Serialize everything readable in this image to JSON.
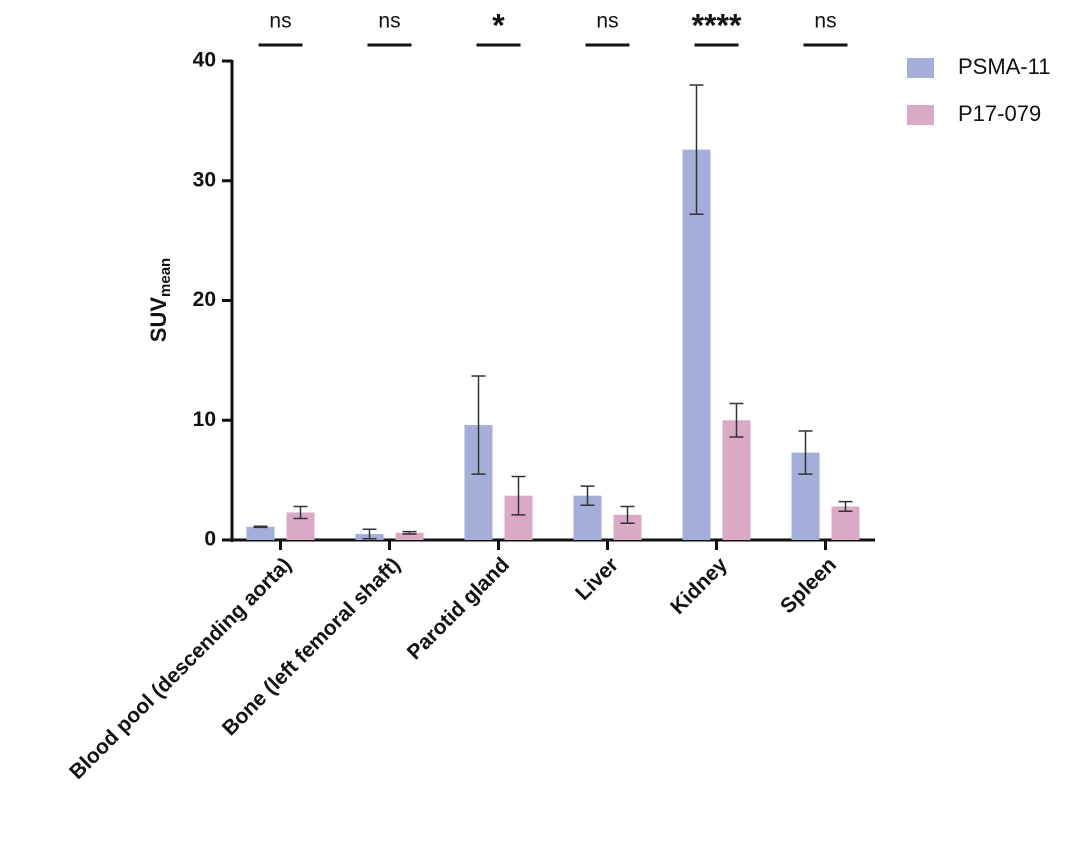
{
  "chart_data": {
    "type": "bar",
    "y_label": "SUV",
    "y_label_subscript": "mean",
    "categories": [
      "Blood pool (descending aorta)",
      "Bone (left femoral shaft)",
      "Parotid gland",
      "Liver",
      "Kidney",
      "Spleen"
    ],
    "series": [
      {
        "name": "PSMA-11",
        "color": "#a4aed9",
        "values": [
          1.1,
          0.5,
          9.6,
          3.7,
          32.6,
          7.3
        ],
        "errors": [
          0.05,
          0.4,
          4.1,
          0.8,
          5.4,
          1.8
        ]
      },
      {
        "name": "P17-079",
        "color": "#d9a9c5",
        "values": [
          2.3,
          0.6,
          3.7,
          2.1,
          10.0,
          2.8
        ],
        "errors": [
          0.5,
          0.1,
          1.6,
          0.7,
          1.4,
          0.4
        ]
      }
    ],
    "significance": [
      "ns",
      "ns",
      "*",
      "ns",
      "****",
      "ns"
    ],
    "ylim": [
      0,
      40
    ],
    "yticks": [
      0,
      10,
      20,
      30,
      40
    ],
    "grid": false,
    "legend": "right"
  }
}
